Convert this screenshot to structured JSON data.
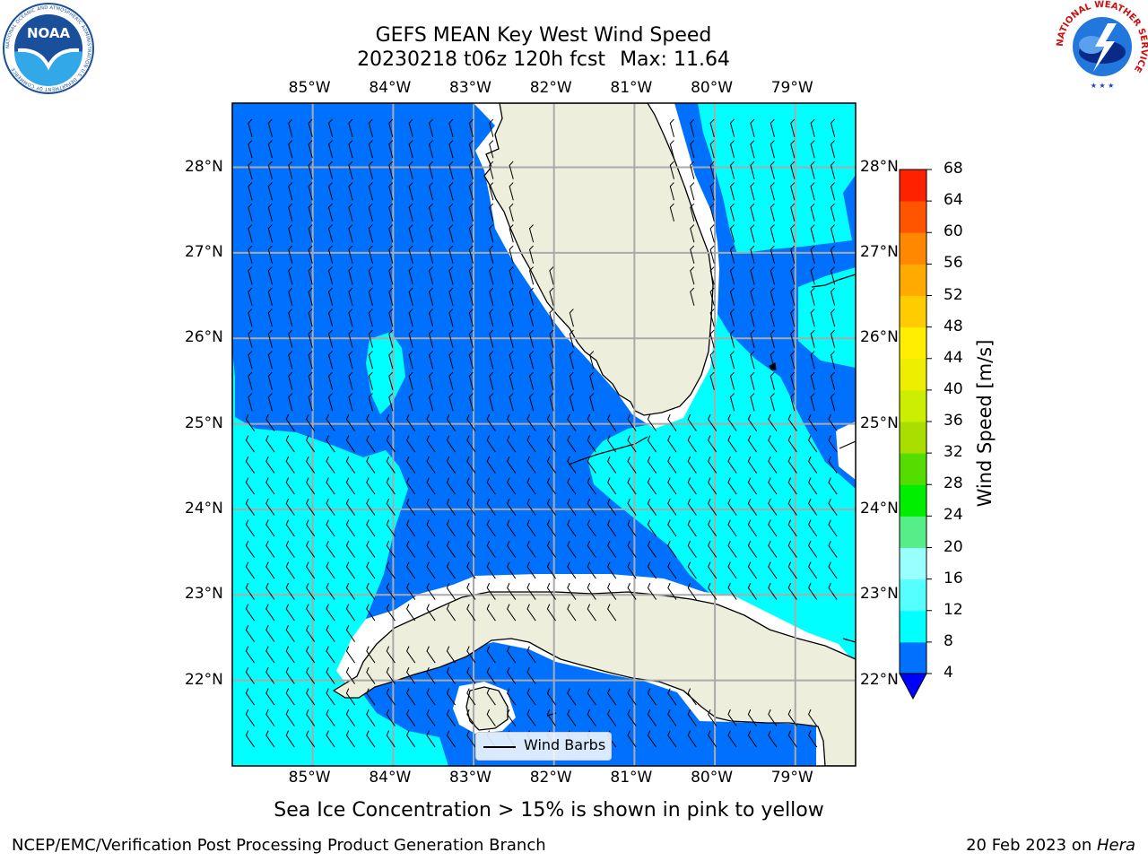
{
  "header": {
    "title_line1": "GEFS MEAN Key West Wind Speed",
    "run_info": "20230218 t06z 120h fcst",
    "max_label": "Max: 11.64"
  },
  "logos": {
    "left": "NOAA",
    "left_ring_text": "NATIONAL OCEANIC AND ATMOSPHERIC ADMINISTRATION U.S. DEPARTMENT OF COMMERCE",
    "right_ring_text": "NATIONAL WEATHER SERVICE"
  },
  "map": {
    "lon_labels": [
      "85°W",
      "84°W",
      "83°W",
      "82°W",
      "81°W",
      "80°W",
      "79°W"
    ],
    "lat_labels": [
      "28°N",
      "27°N",
      "26°N",
      "25°N",
      "24°N",
      "23°N",
      "22°N"
    ],
    "lon_values": [
      -85,
      -84,
      -83,
      -82,
      -81,
      -80,
      -79
    ],
    "lat_values": [
      28,
      27,
      26,
      25,
      24,
      23,
      22
    ],
    "extent": {
      "lon_min": -86.0,
      "lon_max": -78.25,
      "lat_min": 21.0,
      "lat_max": 28.75
    },
    "legend_label": "Wind Barbs",
    "colors": {
      "land": "#eeeedd",
      "class_4_8": "#0070ff",
      "class_8_12": "#00ffff",
      "coast": "#000000",
      "grid": "#aaaaaa"
    }
  },
  "colorbar": {
    "title": "Wind Speed [m/s]",
    "ticks": [
      "68",
      "64",
      "60",
      "56",
      "52",
      "48",
      "44",
      "40",
      "36",
      "32",
      "28",
      "24",
      "20",
      "16",
      "12",
      "8",
      "4"
    ],
    "levels": [
      4,
      8,
      12,
      16,
      20,
      24,
      28,
      32,
      36,
      40,
      44,
      48,
      52,
      56,
      60,
      64,
      68
    ],
    "colors": [
      "#0070ff",
      "#00ffff",
      "#55ffff",
      "#99ffff",
      "#55ee88",
      "#00ee00",
      "#55dd00",
      "#aadd00",
      "#ccee00",
      "#eeee00",
      "#ffee00",
      "#ffcc00",
      "#ffaa00",
      "#ff8800",
      "#ff5500",
      "#ff2200"
    ],
    "under_color": "#0000ff"
  },
  "note": "Sea Ice Concentration > 15% is shown in pink to yellow",
  "footer": {
    "left": "NCEP/EMC/Verification Post Processing Product Generation Branch",
    "date": "20 Feb 2023 on ",
    "machine": "Hera"
  }
}
